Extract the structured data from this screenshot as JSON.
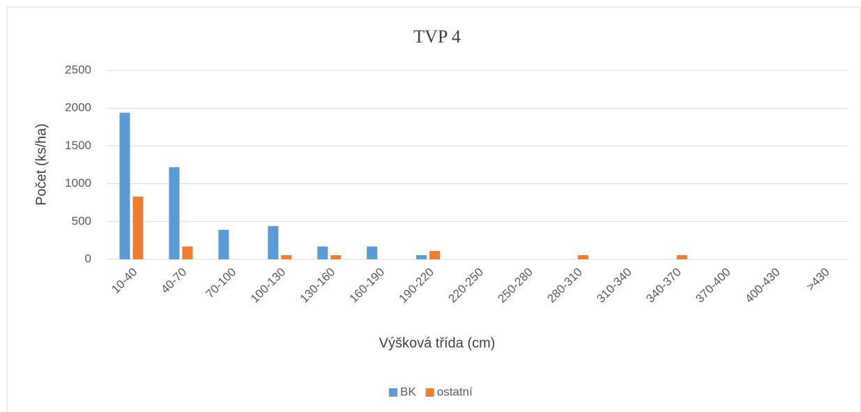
{
  "chart_data": {
    "type": "bar",
    "title": "TVP 4",
    "x_label": "Výšková třída (cm)",
    "y_label": "Počet (ks/ha)",
    "categories": [
      "10-40",
      "40-70",
      "70-100",
      "100-130",
      "130-160",
      "160-190",
      "190-220",
      "220-250",
      "250-280",
      "280-310",
      "310-340",
      "340-370",
      "370-400",
      "400-430",
      ">430"
    ],
    "series": [
      {
        "name": "BK",
        "color": "#5b9bd5",
        "values": [
          1940,
          1220,
          390,
          440,
          170,
          170,
          55,
          0,
          0,
          0,
          0,
          0,
          0,
          0,
          0
        ]
      },
      {
        "name": "ostatní",
        "color": "#ed7d31",
        "values": [
          830,
          170,
          0,
          55,
          55,
          0,
          110,
          0,
          0,
          55,
          0,
          55,
          0,
          0,
          0
        ]
      }
    ],
    "ylim": [
      0,
      2500
    ],
    "yticks": [
      0,
      500,
      1000,
      1500,
      2000,
      2500
    ],
    "grid": true,
    "legend": "bottom"
  }
}
